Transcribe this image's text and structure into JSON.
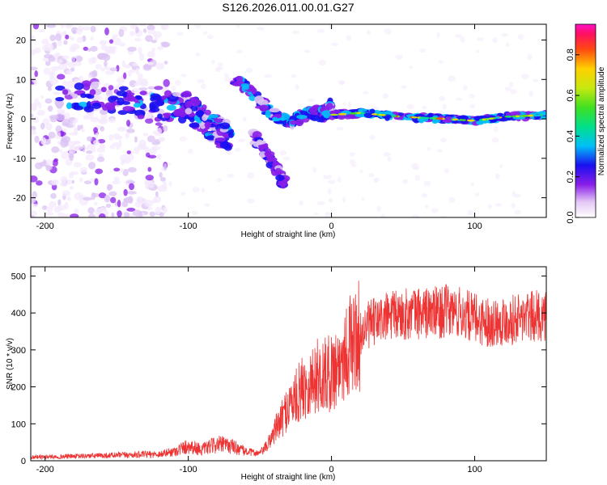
{
  "title": "S126.2026.011.00.01.G27",
  "chart_data": [
    {
      "type": "heatmap",
      "xlabel": "Height of straight line (km)",
      "ylabel": "Frequency (Hz)",
      "xlim": [
        -210,
        150
      ],
      "ylim": [
        -25,
        24
      ],
      "xticks": [
        -200,
        -100,
        0,
        100
      ],
      "yticks": [
        -20,
        -10,
        0,
        10,
        20
      ],
      "colorbar": {
        "label": "Normalized spectral amplitude",
        "range": [
          0,
          0.95
        ],
        "ticks": [
          0.0,
          0.2,
          0.4,
          0.6,
          0.8
        ]
      },
      "features": [
        {
          "name": "main-trace",
          "x": [
            -190,
            -150,
            -120,
            -100,
            -90,
            -80,
            -70
          ],
          "y": [
            6,
            5,
            3,
            3,
            0,
            -3,
            -5
          ]
        },
        {
          "name": "upper-branch",
          "x": [
            -68,
            -55,
            -40,
            -28,
            -15,
            -5,
            0
          ],
          "y": [
            10,
            6,
            1,
            -1,
            2,
            1,
            4
          ]
        },
        {
          "name": "lower-branch",
          "x": [
            -55,
            -45,
            -38,
            -32
          ],
          "y": [
            -4,
            -9,
            -13,
            -17
          ]
        },
        {
          "name": "signal-line",
          "x": [
            0,
            20,
            50,
            80,
            100,
            120,
            150
          ],
          "y": [
            1,
            1.5,
            0.5,
            0,
            -0.5,
            0.5,
            1
          ]
        }
      ]
    },
    {
      "type": "line",
      "xlabel": "Height of straight line (km)",
      "ylabel": "SNR (10 * v/v)",
      "xlim": [
        -210,
        150
      ],
      "ylim": [
        0,
        525
      ],
      "xticks": [
        -200,
        -100,
        0,
        100
      ],
      "yticks": [
        0,
        100,
        200,
        300,
        400,
        500
      ],
      "color": "#ee3333",
      "series": [
        {
          "name": "SNR",
          "x": [
            -210,
            -180,
            -150,
            -120,
            -110,
            -100,
            -90,
            -80,
            -70,
            -60,
            -50,
            -45,
            -40,
            -35,
            -30,
            -25,
            -20,
            -15,
            -10,
            -5,
            0,
            5,
            10,
            15,
            20,
            25,
            30,
            40,
            50,
            60,
            70,
            80,
            90,
            100,
            110,
            120,
            130,
            140,
            150
          ],
          "values": [
            10,
            12,
            15,
            18,
            25,
            40,
            30,
            45,
            40,
            25,
            20,
            40,
            80,
            110,
            150,
            170,
            200,
            210,
            230,
            230,
            240,
            260,
            300,
            320,
            340,
            365,
            375,
            390,
            395,
            400,
            400,
            405,
            400,
            385,
            375,
            380,
            385,
            390,
            395
          ]
        }
      ]
    }
  ]
}
